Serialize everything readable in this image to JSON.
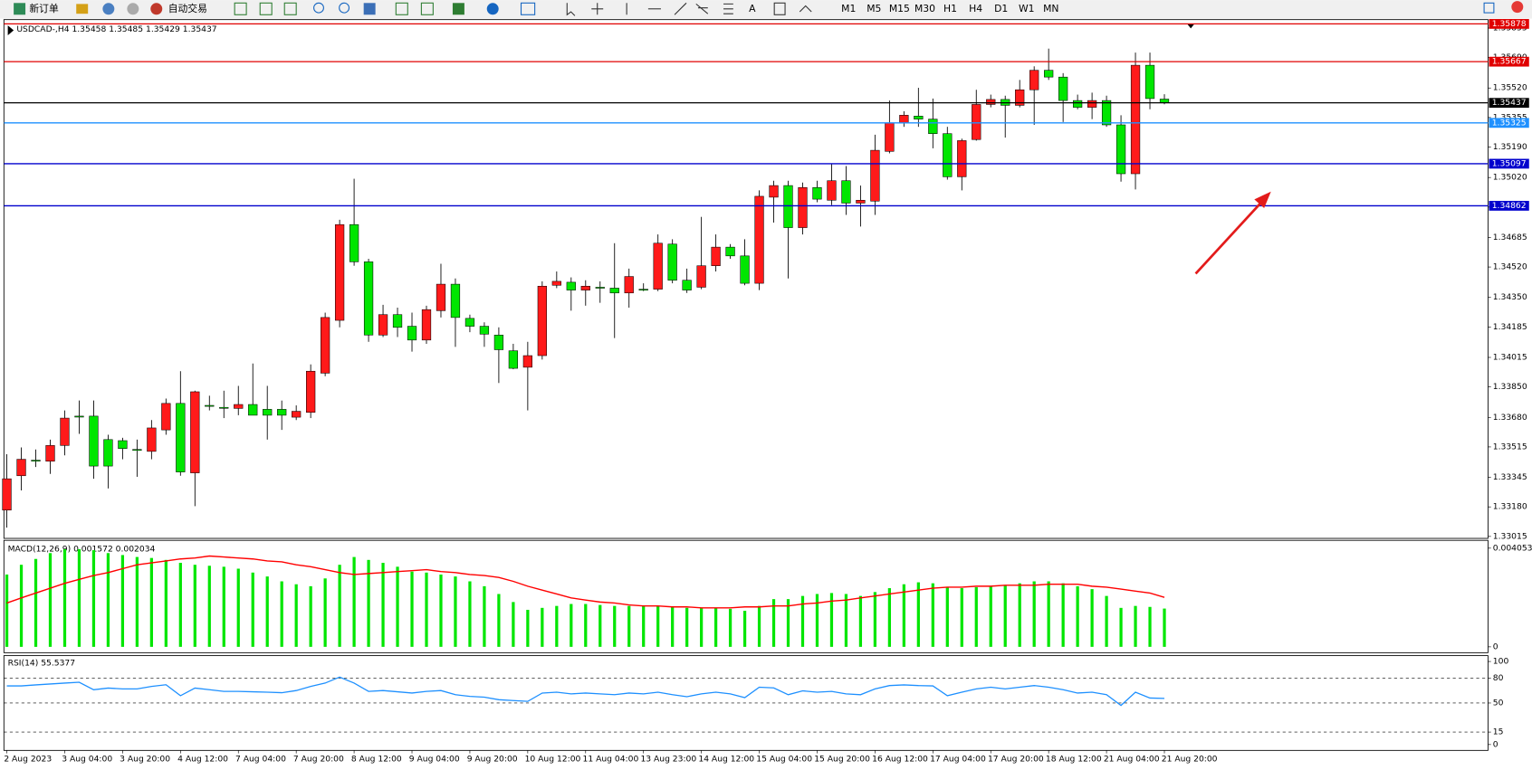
{
  "toolbar": {
    "new_order": "新订单",
    "auto_trading": "自动交易",
    "timeframes": [
      "M1",
      "M5",
      "M15",
      "M30",
      "H1",
      "H4",
      "D1",
      "W1",
      "MN"
    ]
  },
  "chart_data": [
    {
      "type": "candlestick",
      "title": "USDCAD-,H4  1.35458 1.35485 1.35429 1.35437",
      "categories": [
        "2 Aug 2023",
        null,
        null,
        null,
        "3 Aug 04:00",
        null,
        null,
        null,
        "3 Aug 20:00",
        null,
        null,
        null,
        "4 Aug 12:00",
        null,
        null,
        null,
        "7 Aug 04:00",
        null,
        null,
        null,
        "7 Aug 20:00",
        null,
        null,
        null,
        "8 Aug 12:00",
        null,
        null,
        null,
        "9 Aug 04:00",
        null,
        null,
        null,
        "9 Aug 20:00",
        null,
        null,
        null,
        "10 Aug 12:00",
        null,
        null,
        null,
        "11 Aug 04:00",
        null,
        null,
        null,
        "13 Aug 23:00",
        null,
        null,
        null,
        "14 Aug 12:00",
        null,
        null,
        null,
        "15 Aug 04:00",
        null,
        null,
        null,
        "15 Aug 20:00",
        null,
        null,
        null,
        "16 Aug 12:00",
        null,
        null,
        null,
        "17 Aug 04:00",
        null,
        null,
        null,
        "17 Aug 20:00",
        null,
        null,
        null,
        "18 Aug 12:00",
        null,
        null,
        null,
        "21 Aug 04:00",
        null,
        null,
        null,
        "21 Aug 20:00"
      ],
      "open": [
        1.33162,
        1.33354,
        1.33441,
        1.33435,
        1.33523,
        1.33687,
        1.33687,
        1.33556,
        1.3355,
        1.33501,
        1.3349,
        1.3361,
        1.33758,
        1.3337,
        1.33747,
        1.33736,
        1.3373,
        1.33752,
        1.33725,
        1.33725,
        1.33681,
        1.33708,
        1.33927,
        1.34222,
        1.34757,
        1.34549,
        1.3414,
        1.34254,
        1.34189,
        1.34112,
        1.34276,
        1.34424,
        1.34233,
        1.34189,
        1.3414,
        1.34052,
        1.3396,
        1.34025,
        1.34418,
        1.34435,
        1.34391,
        1.34407,
        1.34402,
        1.34375,
        1.34396,
        1.34396,
        1.34648,
        1.34446,
        1.34407,
        1.34527,
        1.34631,
        1.34582,
        1.34429,
        1.3491,
        1.34975,
        1.3474,
        1.34964,
        1.34893,
        1.35002,
        1.34877,
        1.34888,
        1.35166,
        1.35325,
        1.35363,
        1.35346,
        1.35265,
        1.35024,
        1.35232,
        1.35428,
        1.35456,
        1.35423,
        1.3551,
        1.35619,
        1.35581,
        1.3545,
        1.35412,
        1.3545,
        1.35314,
        1.35041,
        1.35647,
        1.35458
      ],
      "high": [
        1.33474,
        1.33512,
        1.33501,
        1.33556,
        1.33719,
        1.33774,
        1.33774,
        1.33583,
        1.33566,
        1.33556,
        1.33665,
        1.33785,
        1.33938,
        1.33829,
        1.33801,
        1.33829,
        1.33856,
        1.33981,
        1.33856,
        1.33774,
        1.33747,
        1.33976,
        1.34265,
        1.34784,
        1.35013,
        1.34566,
        1.34309,
        1.34293,
        1.34265,
        1.34304,
        1.34538,
        1.34456,
        1.34254,
        1.34211,
        1.34183,
        1.34091,
        1.34102,
        1.3444,
        1.34495,
        1.34462,
        1.34446,
        1.3444,
        1.34653,
        1.34511,
        1.34429,
        1.34702,
        1.34675,
        1.34511,
        1.348,
        1.34702,
        1.34648,
        1.34675,
        1.34948,
        1.35002,
        1.35002,
        1.34992,
        1.35002,
        1.35095,
        1.35084,
        1.34975,
        1.35259,
        1.3545,
        1.3539,
        1.35521,
        1.35461,
        1.35303,
        1.35237,
        1.3551,
        1.35483,
        1.35477,
        1.35565,
        1.35641,
        1.3574,
        1.35603,
        1.35483,
        1.35494,
        1.35477,
        1.35368,
        1.35718,
        1.35718,
        1.35485
      ],
      "low": [
        1.33064,
        1.33272,
        1.33403,
        1.33364,
        1.33468,
        1.33588,
        1.33337,
        1.33283,
        1.33446,
        1.33348,
        1.33446,
        1.33583,
        1.33354,
        1.33184,
        1.33719,
        1.33676,
        1.33692,
        1.33692,
        1.33556,
        1.3361,
        1.33665,
        1.33676,
        1.3391,
        1.34183,
        1.34527,
        1.34102,
        1.34129,
        1.34129,
        1.34047,
        1.34091,
        1.34238,
        1.34074,
        1.34156,
        1.34074,
        1.33872,
        1.33949,
        1.33719,
        1.34003,
        1.34402,
        1.34276,
        1.34304,
        1.3432,
        1.34123,
        1.34293,
        1.34385,
        1.34385,
        1.34429,
        1.34375,
        1.34396,
        1.34495,
        1.34566,
        1.34418,
        1.34391,
        1.34768,
        1.34456,
        1.34702,
        1.34882,
        1.34866,
        1.34811,
        1.34746,
        1.34811,
        1.35155,
        1.35303,
        1.35303,
        1.35183,
        1.35008,
        1.34948,
        1.35226,
        1.35412,
        1.35243,
        1.35412,
        1.35314,
        1.35565,
        1.3533,
        1.35401,
        1.35346,
        1.35303,
        1.34997,
        1.34953,
        1.35401,
        1.35429
      ],
      "close": [
        1.33337,
        1.33446,
        1.33441,
        1.33523,
        1.33676,
        1.33687,
        1.33408,
        1.33408,
        1.33506,
        1.33501,
        1.33621,
        1.33758,
        1.33375,
        1.33823,
        1.33747,
        1.33736,
        1.33752,
        1.33692,
        1.33692,
        1.33692,
        1.33714,
        1.33938,
        1.34238,
        1.34757,
        1.34549,
        1.3414,
        1.34254,
        1.34183,
        1.34112,
        1.34282,
        1.34424,
        1.34238,
        1.34189,
        1.34145,
        1.34058,
        1.33954,
        1.34025,
        1.34413,
        1.3444,
        1.34391,
        1.34413,
        1.34407,
        1.34375,
        1.34467,
        1.34396,
        1.34653,
        1.34446,
        1.34391,
        1.34527,
        1.34631,
        1.34582,
        1.34429,
        1.34915,
        1.34975,
        1.3474,
        1.34964,
        1.34899,
        1.35002,
        1.34877,
        1.34893,
        1.35172,
        1.35325,
        1.35368,
        1.35346,
        1.35265,
        1.35024,
        1.35226,
        1.35428,
        1.35456,
        1.35423,
        1.3551,
        1.35619,
        1.35581,
        1.3545,
        1.35412,
        1.3545,
        1.35314,
        1.35041,
        1.35647,
        1.35461,
        1.35437
      ],
      "up_color": "#ff1a1a",
      "down_color": "#00e600",
      "ylim": [
        1.33004,
        1.35902
      ],
      "yticks": [
        1.35855,
        {
          "value": 1.3569,
          "label": "1.35690"
        },
        {
          "value": 1.3552,
          "label": "1.35520"
        },
        1.35355,
        {
          "value": 1.3519,
          "label": "1.35190"
        },
        {
          "value": 1.3502,
          "label": "1.35020"
        },
        1.34855,
        1.34685,
        {
          "value": 1.3452,
          "label": "1.34520"
        },
        {
          "value": 1.3435,
          "label": "1.34350"
        },
        1.34185,
        1.34015,
        {
          "value": 1.3385,
          "label": "1.33850"
        },
        {
          "value": 1.3368,
          "label": "1.33680"
        },
        1.33515,
        1.33345,
        {
          "value": 1.3318,
          "label": "1.33180"
        },
        1.33015
      ],
      "levels": [
        {
          "value": 1.35878,
          "color": "#e00000"
        },
        {
          "value": 1.35667,
          "color": "#e00000"
        },
        {
          "value": 1.35437,
          "color": "#000000"
        },
        {
          "value": 1.35325,
          "color": "#1e90ff"
        },
        {
          "value": 1.35097,
          "color": "#0000cd"
        },
        {
          "value": 1.34862,
          "color": "#0000cd"
        }
      ]
    },
    {
      "type": "macd",
      "title": "MACD(12,26,9) 0.001572 0.002034",
      "histogram": {
        "color": "#00e600",
        "values": [
          0.00297,
          0.00337,
          0.00361,
          0.00385,
          0.00401,
          0.00401,
          0.00397,
          0.00385,
          0.00377,
          0.00369,
          0.00365,
          0.00357,
          0.00345,
          0.00337,
          0.00333,
          0.00329,
          0.00321,
          0.00305,
          0.00289,
          0.00269,
          0.00257,
          0.00249,
          0.00281,
          0.00337,
          0.00369,
          0.00357,
          0.00345,
          0.00329,
          0.00309,
          0.00305,
          0.00297,
          0.00289,
          0.00269,
          0.00249,
          0.00217,
          0.00184,
          0.00152,
          0.0016,
          0.00168,
          0.00176,
          0.00176,
          0.00172,
          0.00168,
          0.00168,
          0.00168,
          0.00168,
          0.00164,
          0.0016,
          0.0016,
          0.0016,
          0.00156,
          0.00148,
          0.00168,
          0.00196,
          0.00196,
          0.00209,
          0.00217,
          0.00221,
          0.00217,
          0.00209,
          0.00225,
          0.00241,
          0.00257,
          0.00265,
          0.00261,
          0.00245,
          0.00241,
          0.00245,
          0.00249,
          0.00253,
          0.00261,
          0.00269,
          0.00269,
          0.00261,
          0.00249,
          0.00237,
          0.00209,
          0.0016,
          0.00168,
          0.00164,
          0.001572
        ]
      },
      "signal": {
        "color": "#ff0000",
        "values": [
          0.0018,
          0.00201,
          0.00221,
          0.00241,
          0.00261,
          0.00277,
          0.00293,
          0.00305,
          0.00321,
          0.00337,
          0.00345,
          0.00353,
          0.00361,
          0.00365,
          0.00373,
          0.00369,
          0.00365,
          0.00361,
          0.00353,
          0.00349,
          0.00337,
          0.00329,
          0.00317,
          0.00305,
          0.00297,
          0.00301,
          0.00305,
          0.00309,
          0.00313,
          0.00317,
          0.00309,
          0.00305,
          0.00297,
          0.00293,
          0.00285,
          0.00269,
          0.00249,
          0.00233,
          0.00217,
          0.00201,
          0.00192,
          0.00184,
          0.0018,
          0.00172,
          0.00168,
          0.00168,
          0.00164,
          0.00164,
          0.0016,
          0.0016,
          0.0016,
          0.00164,
          0.00164,
          0.00168,
          0.00168,
          0.00176,
          0.0018,
          0.00188,
          0.00192,
          0.00201,
          0.00209,
          0.00217,
          0.00225,
          0.00233,
          0.00241,
          0.00245,
          0.00245,
          0.00249,
          0.00249,
          0.00253,
          0.00253,
          0.00253,
          0.00257,
          0.00257,
          0.00257,
          0.00249,
          0.00245,
          0.00237,
          0.00229,
          0.00221,
          0.002034
        ]
      },
      "ylim": [
        0,
        0.004053
      ],
      "yticks": [
        0.004053,
        0
      ]
    },
    {
      "type": "line",
      "title": "RSI(14) 55.5377",
      "color": "#1e90ff",
      "values": [
        70.6,
        70.6,
        71.8,
        72.9,
        74,
        75,
        66,
        68,
        67,
        67,
        70,
        72,
        58.8,
        68,
        66,
        64,
        64,
        63.5,
        63,
        62.4,
        65,
        70,
        74,
        81.2,
        74,
        64,
        65,
        63.5,
        62,
        64,
        65,
        60,
        58,
        57,
        54,
        53,
        52,
        62,
        63,
        61,
        62,
        61,
        60,
        62,
        61,
        63,
        60,
        57.6,
        61,
        63,
        61,
        56.5,
        69,
        68.2,
        60,
        64.7,
        63,
        64,
        61,
        60,
        67,
        71,
        71.8,
        71,
        70.6,
        58.8,
        63,
        67,
        69,
        67,
        69,
        71,
        69,
        66,
        62,
        63,
        60,
        47.1,
        63,
        56,
        55.5377
      ],
      "ylim": [
        0,
        100
      ],
      "yticks": [
        100,
        80,
        50,
        15,
        0
      ],
      "levels": [
        80,
        50,
        15
      ]
    }
  ]
}
